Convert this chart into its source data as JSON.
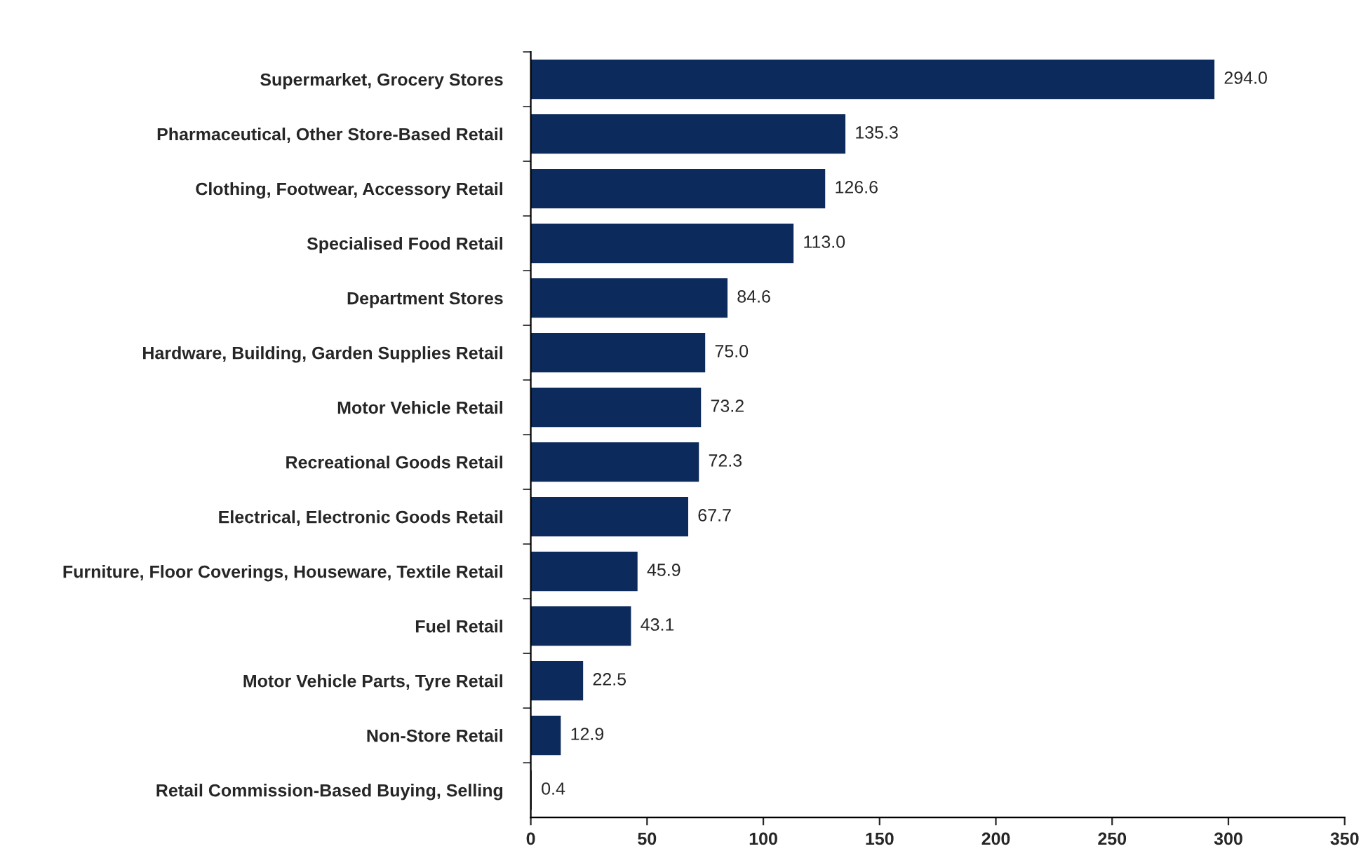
{
  "chart_data": {
    "type": "bar",
    "orientation": "horizontal",
    "categories": [
      "Supermarket, Grocery Stores",
      "Pharmaceutical, Other Store-Based Retail",
      "Clothing, Footwear, Accessory Retail",
      "Specialised Food Retail",
      "Department Stores",
      "Hardware, Building, Garden Supplies Retail",
      "Motor Vehicle Retail",
      "Recreational Goods Retail",
      "Electrical, Electronic Goods Retail",
      "Furniture, Floor Coverings, Houseware, Textile Retail",
      "Fuel Retail",
      "Motor Vehicle Parts, Tyre Retail",
      "Non-Store Retail",
      "Retail Commission-Based Buying, Selling"
    ],
    "values": [
      294.0,
      135.3,
      126.6,
      113.0,
      84.6,
      75.0,
      73.2,
      72.3,
      67.7,
      45.9,
      43.1,
      22.5,
      12.9,
      0.4
    ],
    "value_labels": [
      "294.0",
      "135.3",
      "126.6",
      "113.0",
      "84.6",
      "75.0",
      "73.2",
      "72.3",
      "67.7",
      "45.9",
      "43.1",
      "22.5",
      "12.9",
      "0.4"
    ],
    "color": "#0d2a5c",
    "xlim": [
      0,
      350
    ],
    "xticks": [
      0,
      50,
      100,
      150,
      200,
      250,
      300,
      350
    ],
    "grid": false,
    "legend": false
  }
}
